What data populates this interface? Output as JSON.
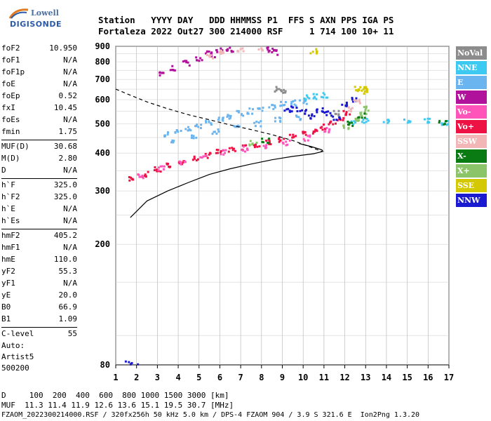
{
  "logo": {
    "line1": "Lowell",
    "line2": "DIGISONDE"
  },
  "header": {
    "labels": "Station   YYYY DAY   DDD HHMMSS P1  FFS S AXN PPS IGA PS",
    "values": "Fortaleza 2022 Out27 300 214000 RSF     1 714 100 10+ 11"
  },
  "params": [
    {
      "k": "foF2",
      "v": "10.950"
    },
    {
      "k": "foF1",
      "v": "N/A"
    },
    {
      "k": "foF1p",
      "v": "N/A"
    },
    {
      "k": "foE",
      "v": "N/A"
    },
    {
      "k": "foEp",
      "v": "0.52"
    },
    {
      "k": "fxI",
      "v": "10.45"
    },
    {
      "k": "foEs",
      "v": "N/A"
    },
    {
      "k": "fmin",
      "v": "1.75"
    },
    {
      "sep": true
    },
    {
      "k": "MUF(D)",
      "v": "30.68"
    },
    {
      "k": "M(D)",
      "v": "2.80"
    },
    {
      "k": "D",
      "v": "N/A"
    },
    {
      "sep": true
    },
    {
      "k": "h`F",
      "v": "325.0"
    },
    {
      "k": "h`F2",
      "v": "325.0"
    },
    {
      "k": "h`E",
      "v": "N/A"
    },
    {
      "k": "h`Es",
      "v": "N/A"
    },
    {
      "sep": true
    },
    {
      "k": "hmF2",
      "v": "405.2"
    },
    {
      "k": "hmF1",
      "v": "N/A"
    },
    {
      "k": "hmE",
      "v": "110.0"
    },
    {
      "k": "yF2",
      "v": "55.3"
    },
    {
      "k": "yF1",
      "v": "N/A"
    },
    {
      "k": "yE",
      "v": "20.0"
    },
    {
      "k": "B0",
      "v": "66.9"
    },
    {
      "k": "B1",
      "v": "1.09"
    },
    {
      "sep": true
    },
    {
      "k": "C-level",
      "v": "55"
    }
  ],
  "auto": {
    "l1": "Auto:",
    "l2": "Artist5",
    "l3": "500200"
  },
  "legend": [
    {
      "label": "NoVal",
      "color": "#8c8c8c"
    },
    {
      "label": "NNE",
      "color": "#3ec9f2"
    },
    {
      "label": "E",
      "color": "#6ab4f0"
    },
    {
      "label": "W",
      "color": "#b0129b"
    },
    {
      "label": "Vo-",
      "color": "#ff55bb"
    },
    {
      "label": "Vo+",
      "color": "#ee1144"
    },
    {
      "label": "SSW",
      "color": "#f3b6b6"
    },
    {
      "label": "X-",
      "color": "#0a7a12"
    },
    {
      "label": "X+",
      "color": "#8cc46a"
    },
    {
      "label": "SSE",
      "color": "#d4c800"
    },
    {
      "label": "NNW",
      "color": "#1a1ad1"
    }
  ],
  "footer": {
    "d_line": "D     100  200  400  600  800 1000 1500 3000 [km]",
    "muf_line": "MUF  11.3 11.4 11.9 12.6 13.6 15.1 19.5 30.7 [MHz]",
    "file_line": "FZAOM_2022300214000.RSF / 320fx256h 50 kHz 5.0 km / DPS-4 FZAOM 904 / 3.9 S 321.6 E  Ion2Png 1.3.20"
  },
  "chart_data": {
    "type": "scatter",
    "xlim": [
      1,
      17
    ],
    "ylim": [
      80,
      900
    ],
    "x_ticks": [
      "1",
      "2",
      "3",
      "4",
      "5",
      "6",
      "7",
      "8",
      "9",
      "10",
      "11",
      "12",
      "13",
      "14",
      "15",
      "16",
      "17"
    ],
    "y_ticks": [
      "80",
      "200",
      "300",
      "400",
      "500",
      "600",
      "700",
      "800",
      "900"
    ],
    "y_tick_values": [
      80,
      200,
      300,
      400,
      500,
      600,
      700,
      800,
      900
    ],
    "y_scale": "log",
    "grid": true,
    "series": [
      {
        "name": "Vo+",
        "color": "#ee1144",
        "points": [
          [
            1.8,
            328
          ],
          [
            2.4,
            340
          ],
          [
            3,
            352
          ],
          [
            3.6,
            363
          ],
          [
            4.2,
            374
          ],
          [
            4.8,
            384
          ],
          [
            5.4,
            393
          ],
          [
            6,
            402
          ],
          [
            6.6,
            410
          ],
          [
            7.2,
            418
          ],
          [
            7.8,
            427
          ],
          [
            8.4,
            435
          ],
          [
            9,
            443
          ],
          [
            9.5,
            452
          ],
          [
            10,
            461
          ],
          [
            10.5,
            472
          ],
          [
            11,
            487
          ],
          [
            11.4,
            500
          ],
          [
            11.8,
            520
          ],
          [
            12.1,
            545
          ]
        ]
      },
      {
        "name": "Vo-",
        "color": "#ff55bb",
        "points": [
          [
            2.2,
            337
          ],
          [
            3.2,
            355
          ],
          [
            4.2,
            372
          ],
          [
            5.2,
            389
          ],
          [
            6.2,
            402
          ],
          [
            7.2,
            412
          ],
          [
            8.2,
            422
          ],
          [
            9.2,
            433
          ],
          [
            10.2,
            448
          ],
          [
            11.2,
            475
          ]
        ]
      },
      {
        "name": "E",
        "color": "#6ab4f0",
        "points": [
          [
            3.5,
            460
          ],
          [
            4,
            470
          ],
          [
            4.5,
            480
          ],
          [
            5,
            492
          ],
          [
            5.5,
            505
          ],
          [
            6,
            517
          ],
          [
            6.5,
            528
          ],
          [
            7,
            540
          ],
          [
            7.5,
            550
          ],
          [
            8,
            560
          ],
          [
            8.5,
            570
          ],
          [
            9,
            580
          ],
          [
            9.5,
            585
          ],
          [
            10,
            590
          ],
          [
            3.8,
            440
          ],
          [
            4.8,
            455
          ],
          [
            5.8,
            470
          ],
          [
            6.8,
            485
          ],
          [
            7.8,
            500
          ],
          [
            8.8,
            515
          ],
          [
            9.8,
            525
          ]
        ]
      },
      {
        "name": "NNE",
        "color": "#3ec9f2",
        "points": [
          [
            10.2,
            610
          ],
          [
            10.6,
            615
          ],
          [
            11,
            620
          ],
          [
            12.4,
            500
          ],
          [
            13,
            510
          ],
          [
            14,
            510
          ],
          [
            15,
            510
          ],
          [
            16,
            510
          ],
          [
            16.8,
            505
          ]
        ]
      },
      {
        "name": "W",
        "color": "#b0129b",
        "points": [
          [
            3.2,
            735
          ],
          [
            3.8,
            760
          ],
          [
            4.4,
            790
          ],
          [
            5,
            815
          ],
          [
            5.6,
            845
          ],
          [
            6,
            870
          ],
          [
            6.4,
            890
          ],
          [
            8.4,
            880
          ],
          [
            8.6,
            860
          ],
          [
            5.5,
            850
          ],
          [
            6.5,
            880
          ]
        ]
      },
      {
        "name": "NNW",
        "color": "#1a1ad1",
        "points": [
          [
            9.2,
            550
          ],
          [
            9.6,
            560
          ],
          [
            10,
            545
          ],
          [
            10.4,
            530
          ],
          [
            10.8,
            555
          ],
          [
            11.2,
            540
          ],
          [
            11.6,
            520
          ],
          [
            12,
            580
          ],
          [
            12.4,
            600
          ],
          [
            1.6,
            81
          ],
          [
            1.9,
            81
          ]
        ]
      },
      {
        "name": "SSW",
        "color": "#f3b6b6",
        "points": [
          [
            5.5,
            830
          ],
          [
            6,
            860
          ],
          [
            7,
            880
          ],
          [
            8,
            890
          ],
          [
            12.2,
            560
          ],
          [
            12.6,
            590
          ]
        ]
      },
      {
        "name": "X+",
        "color": "#8cc46a",
        "points": [
          [
            12.1,
            490
          ],
          [
            12.5,
            510
          ],
          [
            12.9,
            540
          ],
          [
            13.1,
            560
          ],
          [
            7.6,
            432
          ]
        ]
      },
      {
        "name": "X-",
        "color": "#0a7a12",
        "points": [
          [
            12.3,
            500
          ],
          [
            12.8,
            530
          ],
          [
            16.7,
            505
          ],
          [
            8.2,
            440
          ]
        ]
      },
      {
        "name": "SSE",
        "color": "#d4c800",
        "points": [
          [
            12.6,
            650
          ],
          [
            12.9,
            655
          ],
          [
            13.1,
            640
          ],
          [
            10.5,
            870
          ]
        ]
      },
      {
        "name": "NoVal",
        "color": "#8c8c8c",
        "points": [
          [
            8.8,
            650
          ],
          [
            9.1,
            640
          ],
          [
            11.6,
            540
          ]
        ]
      }
    ],
    "profile_solid": [
      [
        1.7,
        245
      ],
      [
        2.5,
        278
      ],
      [
        3.5,
        300
      ],
      [
        4.5,
        320
      ],
      [
        5.5,
        340
      ],
      [
        6.5,
        355
      ],
      [
        7.5,
        368
      ],
      [
        8.5,
        380
      ],
      [
        9.5,
        390
      ],
      [
        10.5,
        398
      ],
      [
        10.95,
        405
      ],
      [
        10.9,
        410
      ],
      [
        10.4,
        420
      ],
      [
        9.8,
        430
      ]
    ],
    "profile_dashed": [
      [
        1,
        650
      ],
      [
        1.6,
        625
      ],
      [
        2.5,
        590
      ],
      [
        3.5,
        560
      ],
      [
        4.5,
        535
      ],
      [
        5.5,
        515
      ],
      [
        6.5,
        495
      ],
      [
        7.5,
        478
      ],
      [
        8.5,
        460
      ],
      [
        9.5,
        440
      ],
      [
        10.3,
        420
      ],
      [
        10.9,
        405
      ]
    ]
  }
}
